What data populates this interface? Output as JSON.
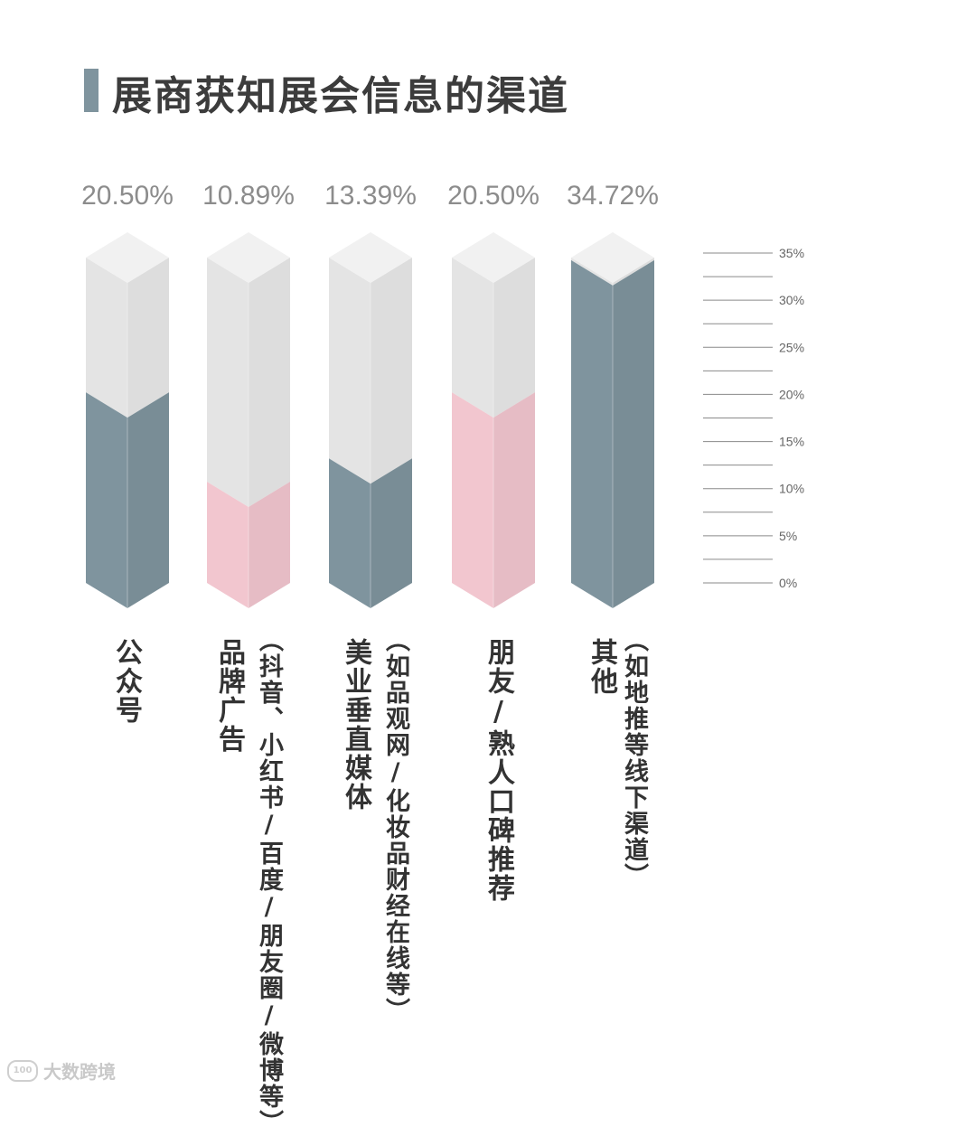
{
  "title": "展商获知展会信息的渠道",
  "colors": {
    "slate": "#7f949e",
    "pink": "#f2c6cf",
    "empty_front": "#e4e4e4",
    "empty_top": "#f1f1f1",
    "title_bar": "#7f949e"
  },
  "chart_data": {
    "type": "bar",
    "title": "展商获知展会信息的渠道",
    "categories": [
      "公众号",
      "品牌广告",
      "美业垂直媒体",
      "朋友/熟人口碑推荐",
      "其他"
    ],
    "values": [
      20.5,
      10.89,
      13.39,
      20.5,
      34.72
    ],
    "value_labels": [
      "20.50%",
      "10.89%",
      "13.39%",
      "20.50%",
      "34.72%"
    ],
    "bar_colors": [
      "#7f949e",
      "#f2c6cf",
      "#7f949e",
      "#f2c6cf",
      "#7f949e"
    ],
    "ylim": [
      0,
      35
    ],
    "scale_ticks": [
      "35%",
      "30%",
      "25%",
      "20%",
      "15%",
      "10%",
      "5%",
      "0%"
    ],
    "scale_tick_values": [
      35,
      30,
      25,
      20,
      15,
      10,
      5,
      0
    ]
  },
  "labels": [
    {
      "main": "公众号",
      "sub": ""
    },
    {
      "main": "品牌广告",
      "sub": "（抖音、小红书/百度/朋友圈/微博等）"
    },
    {
      "main": "美业垂直媒体",
      "sub": "（如品观网/化妆品财经在线等）"
    },
    {
      "main": "朋友/熟人口碑推荐",
      "sub": ""
    },
    {
      "main": "其他",
      "sub": "（如地推等线下渠道）"
    }
  ],
  "watermark": {
    "logo": "100",
    "text": "大数跨境"
  }
}
